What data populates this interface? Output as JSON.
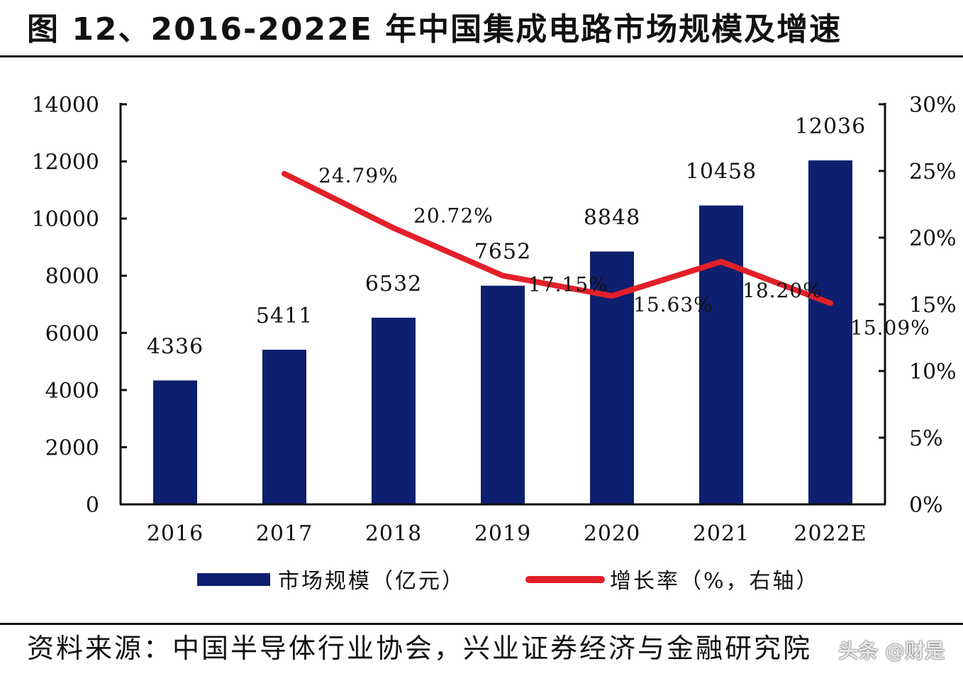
{
  "figure": {
    "title": "图 12、2016-2022E 年中国集成电路市场规模及增速",
    "source": "资料来源：中国半导体行业协会，兴业证券经济与金融研究院",
    "watermark": "头条 @财是"
  },
  "chart_data": {
    "type": "bar+line",
    "title": "图 12、2016-2022E 年中国集成电路市场规模及增速",
    "categories": [
      "2016",
      "2017",
      "2018",
      "2019",
      "2020",
      "2021",
      "2022E"
    ],
    "series": [
      {
        "name": "市场规模（亿元）",
        "type": "bar",
        "axis": "left",
        "color": "#0d1f6e",
        "values": [
          4336,
          5411,
          6532,
          7652,
          8848,
          10458,
          12036
        ],
        "labels": [
          "4336",
          "5411",
          "6532",
          "7652",
          "8848",
          "10458",
          "12036"
        ]
      },
      {
        "name": "增长率（%，右轴）",
        "type": "line",
        "axis": "right",
        "color": "#e3202a",
        "values": [
          null,
          24.79,
          20.72,
          17.15,
          15.63,
          18.2,
          15.09
        ],
        "labels": [
          "",
          "24.79%",
          "20.72%",
          "17.15%",
          "15.63%",
          "18.20%",
          "15.09%"
        ]
      }
    ],
    "y_left": {
      "min": 0,
      "max": 14000,
      "ticks": [
        "0",
        "2000",
        "4000",
        "6000",
        "8000",
        "10000",
        "12000",
        "14000"
      ]
    },
    "y_right": {
      "min": 0,
      "max": 30,
      "ticks": [
        "0%",
        "5%",
        "10%",
        "15%",
        "20%",
        "25%",
        "30%"
      ]
    },
    "legend": {
      "position": "bottom",
      "items": [
        "市场规模（亿元）",
        "增长率（%，右轴）"
      ]
    },
    "grid": false
  }
}
